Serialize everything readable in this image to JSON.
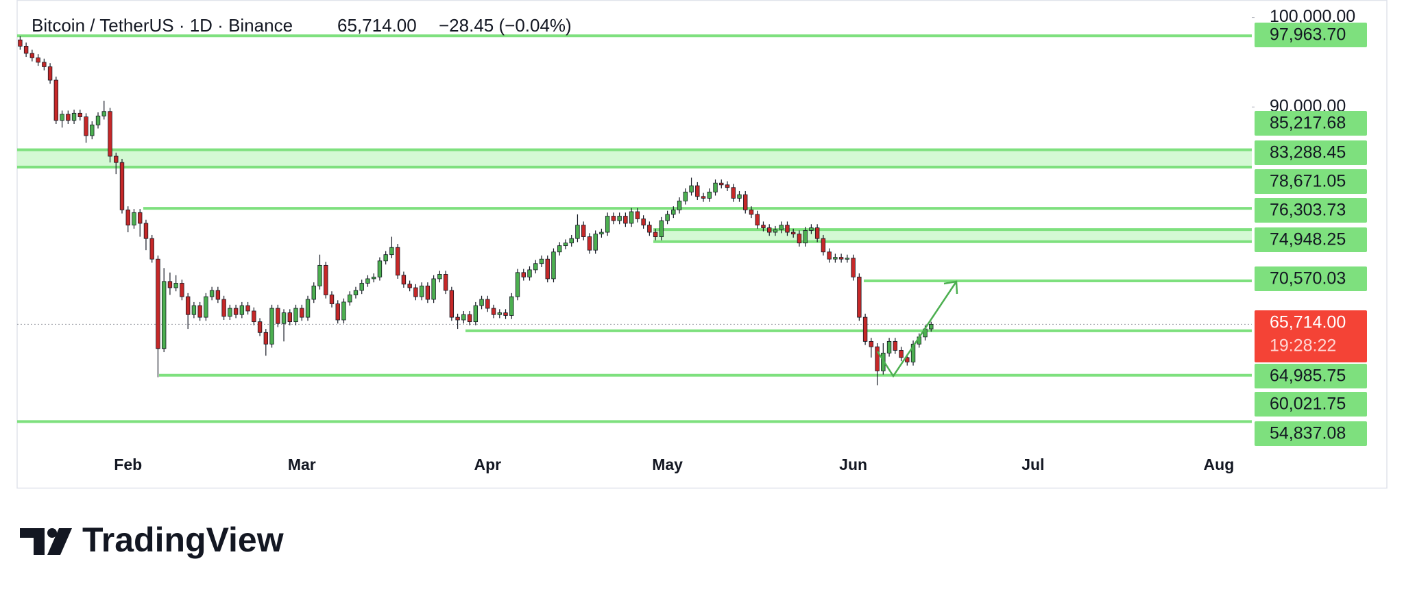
{
  "chart_data": {
    "type": "candlestick",
    "title": "Bitcoin / TetherUS · 1D · Binance",
    "current_price": {
      "value": 65714,
      "label": "65,714.00"
    },
    "change": "−28.45 (−0.04%)",
    "countdown": "19:28:22",
    "categories": [
      null,
      null,
      null,
      null,
      null,
      null,
      null,
      null,
      null,
      null,
      null,
      null,
      null,
      null,
      null,
      null,
      null,
      null,
      "Feb",
      null,
      null,
      null,
      null,
      null,
      null,
      null,
      null,
      null,
      null,
      null,
      null,
      null,
      null,
      null,
      null,
      null,
      null,
      null,
      null,
      null,
      null,
      null,
      null,
      null,
      null,
      null,
      null,
      "Mar",
      null,
      null,
      null,
      null,
      null,
      null,
      null,
      null,
      null,
      null,
      null,
      null,
      null,
      null,
      null,
      null,
      null,
      null,
      null,
      null,
      null,
      null,
      null,
      null,
      null,
      null,
      null,
      null,
      null,
      null,
      "Apr",
      null,
      null,
      null,
      null,
      null,
      null,
      null,
      null,
      null,
      null,
      null,
      null,
      null,
      null,
      null,
      null,
      null,
      null,
      null,
      null,
      null,
      null,
      null,
      null,
      null,
      null,
      null,
      null,
      null,
      "May",
      null,
      null,
      null,
      null,
      null,
      null,
      null,
      null,
      null,
      null,
      null,
      null,
      null,
      null,
      null,
      null,
      null,
      null,
      null,
      null,
      null,
      null,
      null,
      null,
      null,
      null,
      null,
      null,
      null,
      null,
      "Jun",
      null,
      null,
      null,
      null,
      null,
      null,
      null,
      null,
      null,
      null,
      null,
      null,
      null,
      null,
      null,
      null,
      null,
      null,
      null,
      null,
      null,
      null,
      null,
      null,
      null,
      null,
      null,
      null,
      null,
      "Jul",
      null,
      null,
      null,
      null,
      null,
      null,
      null,
      null,
      null,
      null,
      null,
      null,
      null,
      null,
      null,
      null,
      null,
      null,
      null,
      null,
      null,
      null,
      null,
      null,
      null,
      null,
      null,
      null,
      null,
      null,
      "Aug",
      null,
      null,
      null,
      null,
      null
    ],
    "open": [
      97500,
      96800,
      96000,
      95500,
      95000,
      94500,
      93000,
      88500,
      89200,
      88500,
      89300,
      88900,
      86800,
      88000,
      89000,
      89500,
      84500,
      83800,
      78500,
      76800,
      78200,
      77000,
      75300,
      73000,
      63000,
      70500,
      69800,
      70300,
      68800,
      66800,
      67800,
      66500,
      68800,
      69500,
      68500,
      66600,
      67500,
      66800,
      67800,
      67200,
      66000,
      64800,
      63500,
      67500,
      65800,
      67000,
      66000,
      67500,
      66500,
      68500,
      70000,
      72300,
      69000,
      68000,
      66200,
      68200,
      69000,
      69500,
      70300,
      70800,
      71000,
      72800,
      73500,
      74300,
      71200,
      70200,
      69800,
      68800,
      70000,
      68500,
      70800,
      71300,
      69500,
      66500,
      66200,
      66800,
      66000,
      67800,
      68500,
      67500,
      66800,
      67000,
      66700,
      68800,
      71500,
      71000,
      71800,
      72500,
      73000,
      70800,
      73800,
      74500,
      74800,
      75300,
      76800,
      75500,
      74000,
      75800,
      76000,
      77800,
      77300,
      77800,
      77000,
      78300,
      77500,
      76800,
      76000,
      75500,
      77300,
      78000,
      78500,
      79500,
      80500,
      81200,
      80000,
      79800,
      80500,
      81500,
      81300,
      81000,
      79800,
      80200,
      78500,
      78000,
      76800,
      76500,
      76000,
      76300,
      76800,
      76000,
      75800,
      74800,
      76200,
      76500,
      75300,
      73800,
      73000,
      73200,
      73000,
      73100,
      71000,
      66500,
      63800,
      63200,
      60500,
      62500,
      63800,
      62800,
      62000,
      61500,
      63500,
      64300,
      65200,
      null,
      null,
      null,
      null,
      null,
      null,
      null,
      null,
      null,
      null,
      null,
      null,
      null,
      null,
      null,
      null,
      null,
      null,
      null,
      null,
      null,
      null,
      null,
      null,
      null,
      null,
      null,
      null,
      null,
      null,
      null,
      null,
      null,
      null,
      null,
      null,
      null,
      null,
      null,
      null,
      null,
      null,
      null,
      null,
      null,
      null,
      null,
      null,
      null,
      null,
      null,
      null,
      null
    ],
    "high": [
      97900,
      97200,
      96400,
      95900,
      95400,
      94900,
      93400,
      89600,
      89600,
      89700,
      89700,
      89300,
      88400,
      89400,
      90700,
      89900,
      84900,
      84200,
      78900,
      78600,
      78600,
      77400,
      75700,
      73400,
      72000,
      71500,
      71200,
      70700,
      69200,
      68200,
      68200,
      69200,
      69900,
      69900,
      68900,
      67900,
      67900,
      68200,
      68200,
      67600,
      66400,
      65200,
      67900,
      67900,
      67400,
      67400,
      67900,
      67900,
      68900,
      70400,
      73500,
      72700,
      69400,
      68400,
      68600,
      69400,
      69900,
      70700,
      71200,
      71400,
      73200,
      73900,
      75500,
      74700,
      71600,
      70600,
      70200,
      70400,
      70400,
      71200,
      71700,
      71700,
      69900,
      66900,
      67200,
      67200,
      68200,
      68900,
      68900,
      67900,
      67400,
      67400,
      69200,
      71900,
      71900,
      72200,
      72900,
      73400,
      73400,
      74200,
      74900,
      75200,
      75700,
      78000,
      77200,
      75900,
      76200,
      76400,
      78200,
      78200,
      78200,
      78200,
      78700,
      78700,
      77900,
      77200,
      76400,
      77700,
      78400,
      78900,
      79900,
      80900,
      82100,
      81600,
      80400,
      80900,
      81900,
      81900,
      81700,
      81400,
      80600,
      80600,
      78900,
      78400,
      77200,
      76900,
      76700,
      77200,
      77200,
      76400,
      76200,
      76600,
      76900,
      76900,
      75700,
      74200,
      73600,
      73600,
      73500,
      73500,
      71400,
      66900,
      64200,
      63600,
      63600,
      64200,
      64200,
      63200,
      62400,
      63900,
      64700,
      65600,
      66000,
      null,
      null,
      null,
      null,
      null,
      null,
      null,
      null,
      null,
      null,
      null,
      null,
      null,
      null,
      null,
      null,
      null,
      null,
      null,
      null,
      null,
      null,
      null,
      null,
      null,
      null,
      null,
      null,
      null,
      null,
      null,
      null,
      null,
      null,
      null,
      null,
      null,
      null,
      null,
      null,
      null,
      null,
      null,
      null,
      null,
      null,
      null,
      null,
      null,
      null,
      null,
      null,
      null
    ],
    "low": [
      96400,
      95600,
      95100,
      94600,
      94100,
      92600,
      88100,
      87700,
      88100,
      88100,
      88500,
      86000,
      86400,
      87600,
      88600,
      83800,
      82500,
      78100,
      76000,
      76400,
      75500,
      74000,
      72600,
      59800,
      62600,
      69000,
      69400,
      68400,
      65200,
      66400,
      66100,
      66100,
      68400,
      68100,
      66200,
      66200,
      66400,
      66400,
      66800,
      65600,
      64400,
      62200,
      63100,
      65400,
      63800,
      65600,
      65600,
      66100,
      66100,
      68100,
      69600,
      68600,
      67600,
      65800,
      65800,
      67800,
      68600,
      69100,
      69900,
      70400,
      70600,
      72400,
      73100,
      70800,
      69800,
      69400,
      68400,
      68400,
      68100,
      68100,
      70400,
      69100,
      66100,
      65200,
      65800,
      65600,
      65600,
      67400,
      67100,
      66400,
      66400,
      66300,
      66300,
      68400,
      70600,
      70600,
      71400,
      72100,
      70400,
      70400,
      73400,
      74100,
      74400,
      74900,
      75100,
      73600,
      73600,
      75400,
      75600,
      76900,
      76900,
      76600,
      76600,
      77100,
      76400,
      75600,
      75100,
      75100,
      76900,
      77600,
      78100,
      79100,
      80100,
      79600,
      79400,
      79400,
      80100,
      80900,
      80600,
      79400,
      79400,
      78100,
      77600,
      76400,
      76100,
      75600,
      75600,
      75900,
      75600,
      75400,
      74400,
      74400,
      75800,
      74900,
      73400,
      72600,
      72600,
      72600,
      72600,
      70600,
      66100,
      63400,
      62000,
      58900,
      60100,
      62100,
      62400,
      61600,
      61100,
      61100,
      63100,
      63900,
      64900,
      null,
      null,
      null,
      null,
      null,
      null,
      null,
      null,
      null,
      null,
      null,
      null,
      null,
      null,
      null,
      null,
      null,
      null,
      null,
      null,
      null,
      null,
      null,
      null,
      null,
      null,
      null,
      null,
      null,
      null,
      null,
      null,
      null,
      null,
      null,
      null,
      null,
      null,
      null,
      null,
      null,
      null,
      null,
      null,
      null,
      null,
      null,
      null,
      null,
      null,
      null,
      null,
      null
    ],
    "close": [
      96800,
      96000,
      95500,
      95000,
      94500,
      93000,
      88500,
      89200,
      88500,
      89300,
      88900,
      86800,
      88000,
      89000,
      89500,
      84500,
      83800,
      78500,
      76800,
      78200,
      77000,
      75300,
      73000,
      63000,
      70500,
      69800,
      70300,
      68800,
      66800,
      67800,
      66500,
      68800,
      69500,
      68500,
      66600,
      67500,
      66800,
      67800,
      67200,
      66000,
      64800,
      63500,
      67500,
      65800,
      67000,
      66000,
      67500,
      66500,
      68500,
      70000,
      72300,
      69000,
      68000,
      66200,
      68200,
      69000,
      69500,
      70300,
      70800,
      71000,
      72800,
      73500,
      74300,
      71200,
      70200,
      69800,
      68800,
      70000,
      68500,
      70800,
      71300,
      69500,
      66500,
      66200,
      66800,
      66000,
      67800,
      68500,
      67500,
      66800,
      67000,
      66700,
      68800,
      71500,
      71000,
      71800,
      72500,
      73000,
      70800,
      73800,
      74500,
      74800,
      75300,
      76800,
      75500,
      74000,
      75800,
      76000,
      77800,
      77300,
      77800,
      77000,
      78300,
      77500,
      76800,
      76000,
      75500,
      77300,
      78000,
      78500,
      79500,
      80500,
      81200,
      80000,
      79800,
      80500,
      81500,
      81300,
      81000,
      79800,
      80200,
      78500,
      78000,
      76800,
      76500,
      76000,
      76300,
      76800,
      76000,
      75800,
      74800,
      76200,
      76500,
      75300,
      73800,
      73000,
      73200,
      73000,
      73100,
      71000,
      66500,
      63800,
      63200,
      60500,
      62500,
      63800,
      62800,
      62000,
      61500,
      63500,
      64300,
      65200,
      65714,
      null,
      null,
      null,
      null,
      null,
      null,
      null,
      null,
      null,
      null,
      null,
      null,
      null,
      null,
      null,
      null,
      null,
      null,
      null,
      null,
      null,
      null,
      null,
      null,
      null,
      null,
      null,
      null,
      null,
      null,
      null,
      null,
      null,
      null,
      null,
      null,
      null,
      null,
      null,
      null,
      null,
      null,
      null,
      null,
      null,
      null,
      null,
      null,
      null,
      null,
      null,
      null,
      null
    ],
    "up_color": "#4caf50",
    "down_color": "#c62828",
    "level_color": "#7ee07e",
    "zone_color": "#c9f7c9",
    "levels": [
      {
        "value": 97963.7,
        "label": "97,963.70"
      },
      {
        "value": 85217.68,
        "label": "85,217.68"
      },
      {
        "value": 83288.45,
        "label": "83,288.45"
      },
      {
        "value": 78671.05,
        "label": "78,671.05"
      },
      {
        "value": 76303.73,
        "label": "76,303.73"
      },
      {
        "value": 74948.25,
        "label": "74,948.25"
      },
      {
        "value": 70570.03,
        "label": "70,570.03"
      },
      {
        "value": 64985.75,
        "label": "64,985.75"
      },
      {
        "value": 60021.75,
        "label": "60,021.75"
      },
      {
        "value": 54837.08,
        "label": "54,837.08"
      }
    ],
    "ylim": [
      51960,
      101960
    ],
    "yticks": [
      {
        "value": 100000,
        "label": "100,000.00"
      },
      {
        "value": 90000,
        "label": "90,000.00"
      }
    ]
  },
  "brand": "TradingView"
}
